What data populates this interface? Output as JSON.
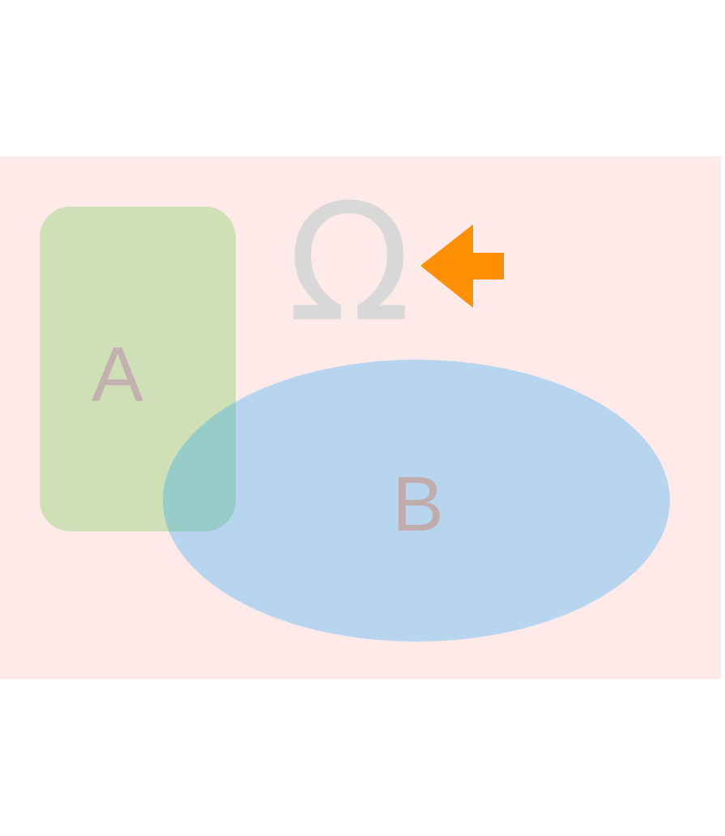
{
  "diagram": {
    "background_color": "#ffffff",
    "panel_color": "#ffeaea",
    "shape_a": {
      "label": "A",
      "fill": "#cfdfb6",
      "label_color": "#c4b0b0"
    },
    "shape_b": {
      "label": "B",
      "fill": "#b8d5f0",
      "overlap_fill": "#96cdc8",
      "label_color": "#c0acac"
    },
    "omega": {
      "glyph": "Ω",
      "color": "#d8d8d8"
    },
    "arrow": {
      "icon": "left-arrow-icon",
      "color": "#ff9005"
    }
  }
}
